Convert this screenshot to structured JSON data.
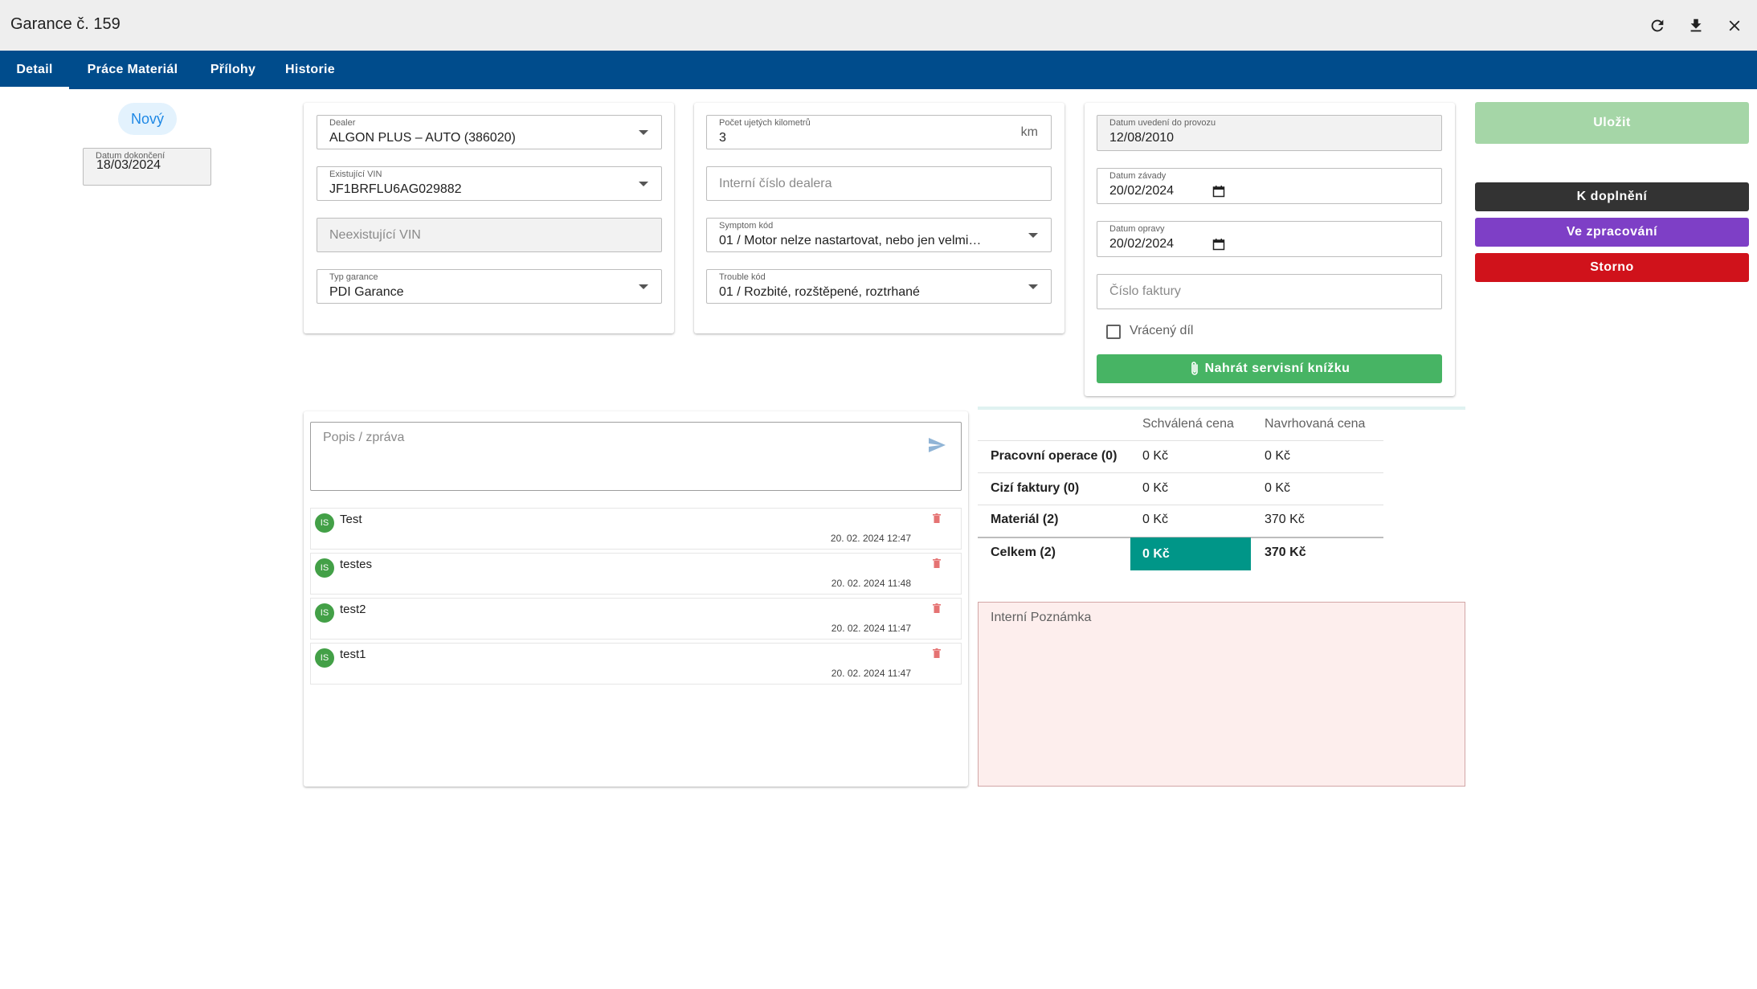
{
  "window": {
    "title": "Garance č. 159",
    "icons": [
      "refresh-icon",
      "download-icon",
      "close-icon"
    ]
  },
  "tabs": [
    {
      "label": "Detail",
      "active": true
    },
    {
      "label": "Práce Materiál"
    },
    {
      "label": "Přílohy"
    },
    {
      "label": "Historie"
    }
  ],
  "status": {
    "label": "Nový",
    "completion_date_label": "Datum dokončení",
    "completion_date": "18/03/2024"
  },
  "form1": {
    "dealer_label": "Dealer",
    "dealer_value": "ALGON PLUS – AUTO (386020)",
    "vin_label": "Existující VIN",
    "vin_value": "JF1BRFLU6AG029882",
    "nonexistent_vin_placeholder": "Neexistující VIN",
    "warranty_type_label": "Typ garance",
    "warranty_type_value": "PDI Garance"
  },
  "form2": {
    "km_label": "Počet ujetých kilometrů",
    "km_value": "3",
    "km_unit": "km",
    "dealer_number_placeholder": "Interní číslo dealera",
    "symptom_label": "Symptom kód",
    "symptom_value": "01 / Motor nelze nastartovat, nebo jen velmi…",
    "trouble_label": "Trouble kód",
    "trouble_value": "01 / Rozbité, rozštěpené, roztrhané"
  },
  "form3": {
    "service_date_label": "Datum uvedení do provozu",
    "service_date_value": "12/08/2010",
    "fault_date_label": "Datum závady",
    "fault_date_value": "20/02/2024",
    "repair_date_label": "Datum opravy",
    "repair_date_value": "20/02/2024",
    "invoice_placeholder": "Číslo faktury",
    "returned_part_label": "Vrácený díl",
    "upload_button_label": "Nahrát servisní knížku"
  },
  "actions": {
    "save_label": "Uložit",
    "save_color": "#a5d6a7",
    "to_complete_label": "K doplnění",
    "to_complete_color": "#333333",
    "in_progress_label": "Ve zpracování",
    "in_progress_color": "#7e3fc6",
    "cancel_label": "Storno",
    "cancel_color": "#d0121b"
  },
  "messages": {
    "input_placeholder": "Popis / zpráva",
    "items": [
      {
        "avatar": "IS",
        "text": "Test",
        "time": "20. 02. 2024 12:47"
      },
      {
        "avatar": "IS",
        "text": "testes",
        "time": "20. 02. 2024 11:48"
      },
      {
        "avatar": "IS",
        "text": "test2",
        "time": "20. 02. 2024 11:47"
      },
      {
        "avatar": "IS",
        "text": "test1",
        "time": "20. 02. 2024 11:47"
      }
    ]
  },
  "prices": {
    "headers": [
      "Schválená cena",
      "Navrhovaná cena"
    ],
    "rows": [
      {
        "label": "Pracovní operace (0)",
        "approved": "0 Kč",
        "proposed": "0 Kč"
      },
      {
        "label": "Cizí faktury (0)",
        "approved": "0 Kč",
        "proposed": "0 Kč"
      },
      {
        "label": "Materiál (2)",
        "approved": "0 Kč",
        "proposed": "370 Kč"
      },
      {
        "label": "Celkem (2)",
        "approved": "0 Kč",
        "proposed": "370 Kč"
      }
    ],
    "total_highlight_color": "#009688"
  },
  "note": {
    "placeholder": "Interní Poznámka"
  }
}
